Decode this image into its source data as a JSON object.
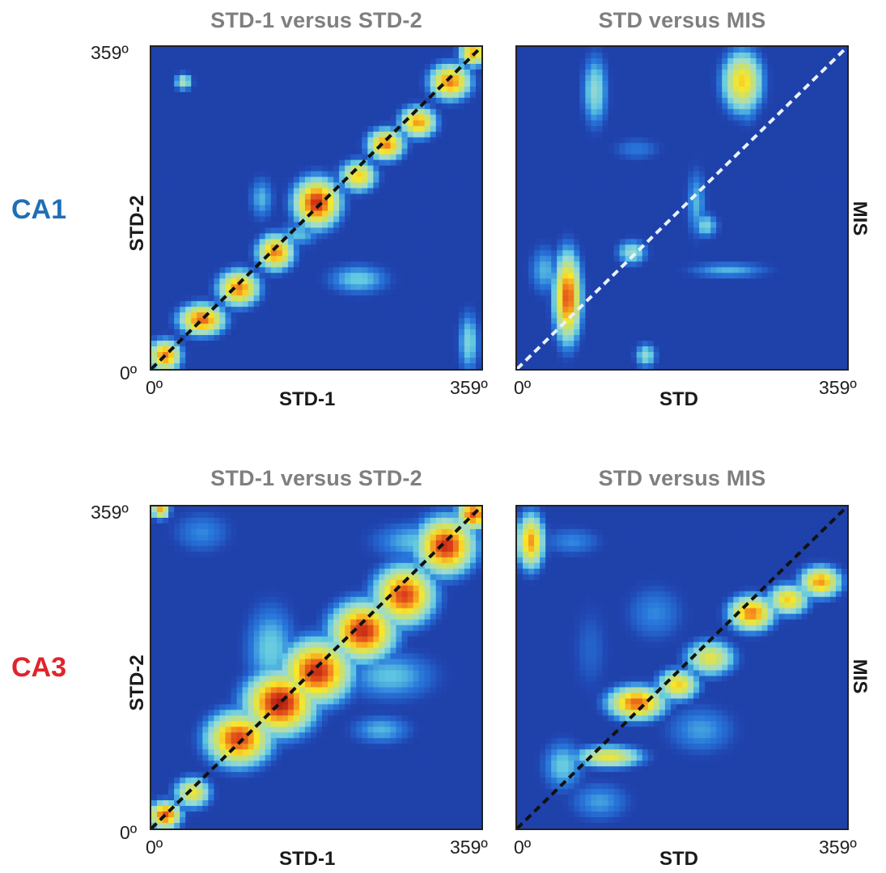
{
  "regions": [
    {
      "label": "CA1",
      "color": "#1f6fb5"
    },
    {
      "label": "CA3",
      "color": "#e0242b"
    }
  ],
  "chart_data": [
    {
      "type": "heatmap",
      "region": "CA1",
      "title": "STD-1 versus STD-2",
      "xlabel": "STD-1",
      "ylabel": "STD-2",
      "xticks": [
        "0º",
        "359º"
      ],
      "yticks": [
        "0º",
        "359º"
      ],
      "xlim": [
        0,
        359
      ],
      "ylim": [
        0,
        359
      ],
      "diagonal_color": "#111111",
      "blobs": [
        {
          "x": 15,
          "y": 15,
          "sx": 14,
          "sy": 14,
          "v": 0.85
        },
        {
          "x": 55,
          "y": 55,
          "sx": 20,
          "sy": 14,
          "v": 0.88
        },
        {
          "x": 95,
          "y": 90,
          "sx": 18,
          "sy": 16,
          "v": 0.85
        },
        {
          "x": 135,
          "y": 130,
          "sx": 16,
          "sy": 16,
          "v": 0.85
        },
        {
          "x": 180,
          "y": 185,
          "sx": 20,
          "sy": 22,
          "v": 0.95
        },
        {
          "x": 225,
          "y": 215,
          "sx": 16,
          "sy": 14,
          "v": 0.75
        },
        {
          "x": 255,
          "y": 250,
          "sx": 16,
          "sy": 14,
          "v": 0.85
        },
        {
          "x": 290,
          "y": 275,
          "sx": 16,
          "sy": 14,
          "v": 0.82
        },
        {
          "x": 325,
          "y": 320,
          "sx": 18,
          "sy": 16,
          "v": 0.85
        },
        {
          "x": 350,
          "y": 352,
          "sx": 12,
          "sy": 12,
          "v": 0.8
        },
        {
          "x": 225,
          "y": 100,
          "sx": 30,
          "sy": 15,
          "v": 0.42
        },
        {
          "x": 120,
          "y": 190,
          "sx": 12,
          "sy": 22,
          "v": 0.38
        },
        {
          "x": 345,
          "y": 30,
          "sx": 10,
          "sy": 30,
          "v": 0.45
        },
        {
          "x": 35,
          "y": 320,
          "sx": 8,
          "sy": 8,
          "v": 0.55
        },
        {
          "x": 160,
          "y": 150,
          "sx": 20,
          "sy": 12,
          "v": 0.4
        }
      ]
    },
    {
      "type": "heatmap",
      "region": "CA1",
      "title": "STD versus MIS",
      "xlabel": "STD",
      "ylabel": "MIS",
      "xticks": [
        "0º",
        "359º"
      ],
      "yticks": [],
      "xlim": [
        0,
        359
      ],
      "ylim": [
        0,
        359
      ],
      "diagonal_color": "#e8f2ff",
      "blobs": [
        {
          "x": 55,
          "y": 80,
          "sx": 12,
          "sy": 40,
          "v": 0.9
        },
        {
          "x": 245,
          "y": 320,
          "sx": 18,
          "sy": 28,
          "v": 0.75
        },
        {
          "x": 250,
          "y": 295,
          "sx": 12,
          "sy": 20,
          "v": 0.4
        },
        {
          "x": 85,
          "y": 310,
          "sx": 12,
          "sy": 35,
          "v": 0.48
        },
        {
          "x": 195,
          "y": 185,
          "sx": 10,
          "sy": 35,
          "v": 0.38
        },
        {
          "x": 205,
          "y": 160,
          "sx": 12,
          "sy": 12,
          "v": 0.45
        },
        {
          "x": 230,
          "y": 110,
          "sx": 40,
          "sy": 8,
          "v": 0.38
        },
        {
          "x": 125,
          "y": 130,
          "sx": 14,
          "sy": 12,
          "v": 0.5
        },
        {
          "x": 140,
          "y": 15,
          "sx": 10,
          "sy": 12,
          "v": 0.48
        },
        {
          "x": 30,
          "y": 110,
          "sx": 15,
          "sy": 25,
          "v": 0.38
        },
        {
          "x": 130,
          "y": 245,
          "sx": 25,
          "sy": 12,
          "v": 0.3
        }
      ]
    },
    {
      "type": "heatmap",
      "region": "CA3",
      "title": "STD-1 versus STD-2",
      "xlabel": "STD-1",
      "ylabel": "STD-2",
      "xticks": [
        "0º",
        "359º"
      ],
      "yticks": [
        "0º",
        "359º"
      ],
      "xlim": [
        0,
        359
      ],
      "ylim": [
        0,
        359
      ],
      "diagonal_color": "#111111",
      "blobs": [
        {
          "x": 15,
          "y": 15,
          "sx": 14,
          "sy": 12,
          "v": 0.9
        },
        {
          "x": 45,
          "y": 40,
          "sx": 16,
          "sy": 14,
          "v": 0.7
        },
        {
          "x": 95,
          "y": 100,
          "sx": 28,
          "sy": 24,
          "v": 0.92
        },
        {
          "x": 140,
          "y": 140,
          "sx": 30,
          "sy": 28,
          "v": 0.98
        },
        {
          "x": 180,
          "y": 175,
          "sx": 30,
          "sy": 28,
          "v": 0.95
        },
        {
          "x": 230,
          "y": 220,
          "sx": 28,
          "sy": 26,
          "v": 0.95
        },
        {
          "x": 275,
          "y": 260,
          "sx": 26,
          "sy": 26,
          "v": 0.92
        },
        {
          "x": 320,
          "y": 315,
          "sx": 25,
          "sy": 25,
          "v": 0.95
        },
        {
          "x": 350,
          "y": 350,
          "sx": 14,
          "sy": 14,
          "v": 0.9
        },
        {
          "x": 130,
          "y": 200,
          "sx": 25,
          "sy": 45,
          "v": 0.42
        },
        {
          "x": 260,
          "y": 170,
          "sx": 45,
          "sy": 25,
          "v": 0.4
        },
        {
          "x": 250,
          "y": 110,
          "sx": 30,
          "sy": 15,
          "v": 0.38
        },
        {
          "x": 290,
          "y": 320,
          "sx": 45,
          "sy": 20,
          "v": 0.4
        },
        {
          "x": 55,
          "y": 330,
          "sx": 30,
          "sy": 22,
          "v": 0.32
        },
        {
          "x": 10,
          "y": 355,
          "sx": 8,
          "sy": 8,
          "v": 0.8
        }
      ]
    },
    {
      "type": "heatmap",
      "region": "CA3",
      "title": "STD versus MIS",
      "xlabel": "STD",
      "ylabel": "MIS",
      "xticks": [
        "0º",
        "359º"
      ],
      "yticks": [],
      "xlim": [
        0,
        359
      ],
      "ylim": [
        0,
        359
      ],
      "diagonal_color": "#111111",
      "blobs": [
        {
          "x": 130,
          "y": 140,
          "sx": 25,
          "sy": 15,
          "v": 0.88
        },
        {
          "x": 175,
          "y": 160,
          "sx": 18,
          "sy": 14,
          "v": 0.75
        },
        {
          "x": 210,
          "y": 190,
          "sx": 22,
          "sy": 16,
          "v": 0.68
        },
        {
          "x": 255,
          "y": 240,
          "sx": 20,
          "sy": 16,
          "v": 0.85
        },
        {
          "x": 295,
          "y": 255,
          "sx": 18,
          "sy": 14,
          "v": 0.75
        },
        {
          "x": 330,
          "y": 275,
          "sx": 18,
          "sy": 14,
          "v": 0.82
        },
        {
          "x": 100,
          "y": 80,
          "sx": 30,
          "sy": 10,
          "v": 0.7
        },
        {
          "x": 50,
          "y": 70,
          "sx": 20,
          "sy": 25,
          "v": 0.42
        },
        {
          "x": 90,
          "y": 30,
          "sx": 30,
          "sy": 20,
          "v": 0.35
        },
        {
          "x": 15,
          "y": 320,
          "sx": 12,
          "sy": 25,
          "v": 0.82
        },
        {
          "x": 60,
          "y": 320,
          "sx": 30,
          "sy": 15,
          "v": 0.32
        },
        {
          "x": 200,
          "y": 110,
          "sx": 35,
          "sy": 25,
          "v": 0.35
        },
        {
          "x": 150,
          "y": 240,
          "sx": 30,
          "sy": 30,
          "v": 0.32
        },
        {
          "x": 80,
          "y": 200,
          "sx": 20,
          "sy": 50,
          "v": 0.25
        }
      ]
    }
  ]
}
